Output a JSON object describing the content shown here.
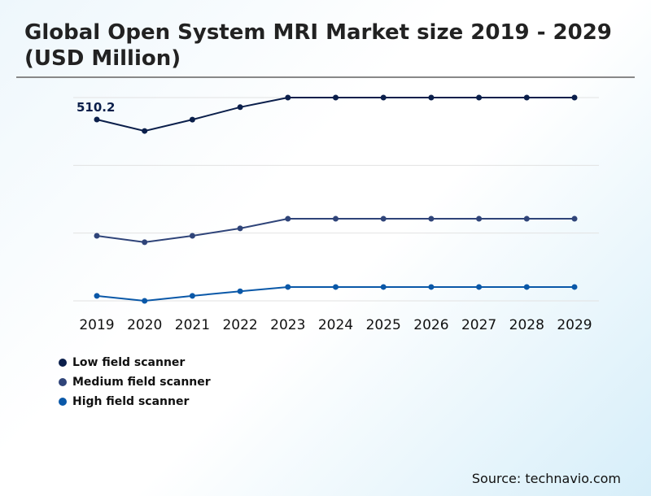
{
  "chart_data": {
    "type": "line",
    "title": "Global Open System MRI Market size 2019 - 2029 (USD Million)",
    "categories": [
      "2019",
      "2020",
      "2021",
      "2022",
      "2023",
      "2024",
      "2025",
      "2026",
      "2027",
      "2028",
      "2029"
    ],
    "ylim": [
      0,
      572
    ],
    "grid": true,
    "legend": "bottom-left",
    "series": [
      {
        "name": "Low field scanner",
        "color": "#0b1f4b",
        "values": [
          510.2,
          478,
          510,
          545,
          572,
          572,
          572,
          572,
          572,
          572,
          572
        ]
      },
      {
        "name": "Medium field scanner",
        "color": "#2f4479",
        "values": [
          183,
          165,
          183,
          204,
          231,
          231,
          231,
          231,
          231,
          231,
          231
        ]
      },
      {
        "name": "High field scanner",
        "color": "#0a58a8",
        "values": [
          14,
          0,
          14,
          27,
          39,
          39,
          39,
          39,
          39,
          39,
          39
        ]
      }
    ],
    "data_labels": [
      {
        "series": 0,
        "index": 0,
        "text": "510.2"
      }
    ]
  },
  "source": "Source: technavio.com"
}
